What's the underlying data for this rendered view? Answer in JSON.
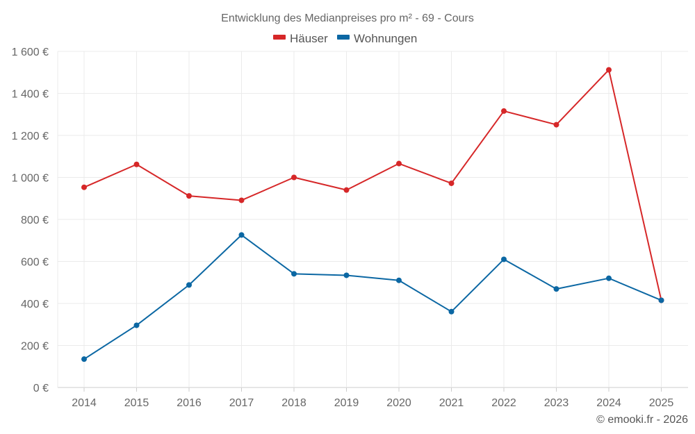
{
  "chart_data": {
    "type": "line",
    "title": "Entwicklung des Medianpreises pro m² - 69 - Cours",
    "xlabel": "",
    "ylabel": "",
    "categories": [
      "2014",
      "2015",
      "2016",
      "2017",
      "2018",
      "2019",
      "2020",
      "2021",
      "2022",
      "2023",
      "2024",
      "2025"
    ],
    "series": [
      {
        "name": "Häuser",
        "color": "#d62728",
        "values": [
          953,
          1062,
          912,
          891,
          1000,
          940,
          1066,
          972,
          1316,
          1251,
          1512,
          415
        ]
      },
      {
        "name": "Wohnungen",
        "color": "#0b67a3",
        "values": [
          135,
          296,
          488,
          726,
          541,
          534,
          510,
          361,
          610,
          469,
          520,
          415
        ]
      }
    ],
    "ylim": [
      0,
      1600
    ],
    "yticks": [
      0,
      200,
      400,
      600,
      800,
      1000,
      1200,
      1400,
      1600
    ],
    "ytick_labels": [
      "0 €",
      "200 €",
      "400 €",
      "600 €",
      "800 €",
      "1 000 €",
      "1 200 €",
      "1 400 €",
      "1 600 €"
    ],
    "grid": true,
    "legend_position": "top-center"
  },
  "footer": {
    "credit": "© emooki.fr - 2026"
  }
}
